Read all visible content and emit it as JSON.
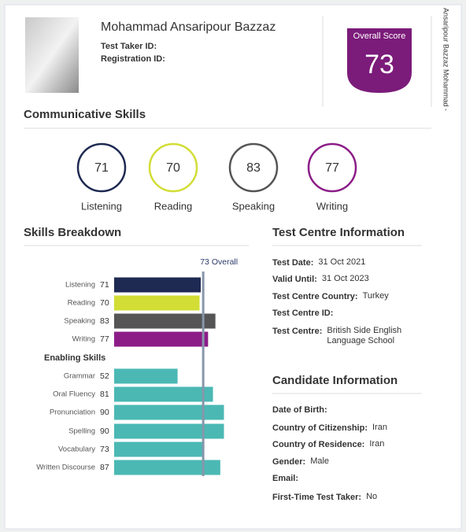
{
  "candidate": {
    "name": "Mohammad Ansaripour Bazzaz",
    "id_labels": [
      "Test Taker ID:",
      "Registration ID:"
    ]
  },
  "overall": {
    "label": "Overall Score",
    "score": 73
  },
  "side_text": "Ansaripour Bazzaz Mohammad -",
  "communicative": {
    "title": "Communicative Skills",
    "skills": [
      {
        "name": "Listening",
        "score": 71,
        "color": "#1e2a52"
      },
      {
        "name": "Reading",
        "score": 70,
        "color": "#d2dd35"
      },
      {
        "name": "Speaking",
        "score": 83,
        "color": "#555555"
      },
      {
        "name": "Writing",
        "score": 77,
        "color": "#8c1d87"
      }
    ]
  },
  "breakdown": {
    "title": "Skills Breakdown",
    "overall_marker": {
      "value": 73,
      "label": "Overall"
    },
    "enabling_title": "Enabling Skills",
    "enabling_color": "#4bb8b4",
    "enabling": [
      {
        "name": "Grammar",
        "score": 52
      },
      {
        "name": "Oral Fluency",
        "score": 81
      },
      {
        "name": "Pronunciation",
        "score": 90
      },
      {
        "name": "Spelling",
        "score": 90
      },
      {
        "name": "Vocabulary",
        "score": 73
      },
      {
        "name": "Written Discourse",
        "score": 87
      }
    ]
  },
  "test_centre": {
    "title": "Test Centre Information",
    "rows": [
      {
        "label": "Test Date:",
        "value": "31 Oct 2021"
      },
      {
        "label": "Valid Until:",
        "value": "31 Oct 2023"
      },
      {
        "label": "Test Centre Country:",
        "value": "Turkey"
      },
      {
        "label": "Test Centre ID:"
      },
      {
        "label": "Test Centre:",
        "value": "British Side English Language School"
      }
    ]
  },
  "candidate_info": {
    "title": "Candidate Information",
    "rows": [
      {
        "label": "Date of Birth:"
      },
      {
        "label": "Country of Citizenship:",
        "value": "Iran"
      },
      {
        "label": "Country of Residence:",
        "value": "Iran"
      },
      {
        "label": "Gender:",
        "value": "Male"
      },
      {
        "label": "Email:"
      },
      {
        "label": "First-Time Test Taker:",
        "value": "No"
      }
    ]
  }
}
